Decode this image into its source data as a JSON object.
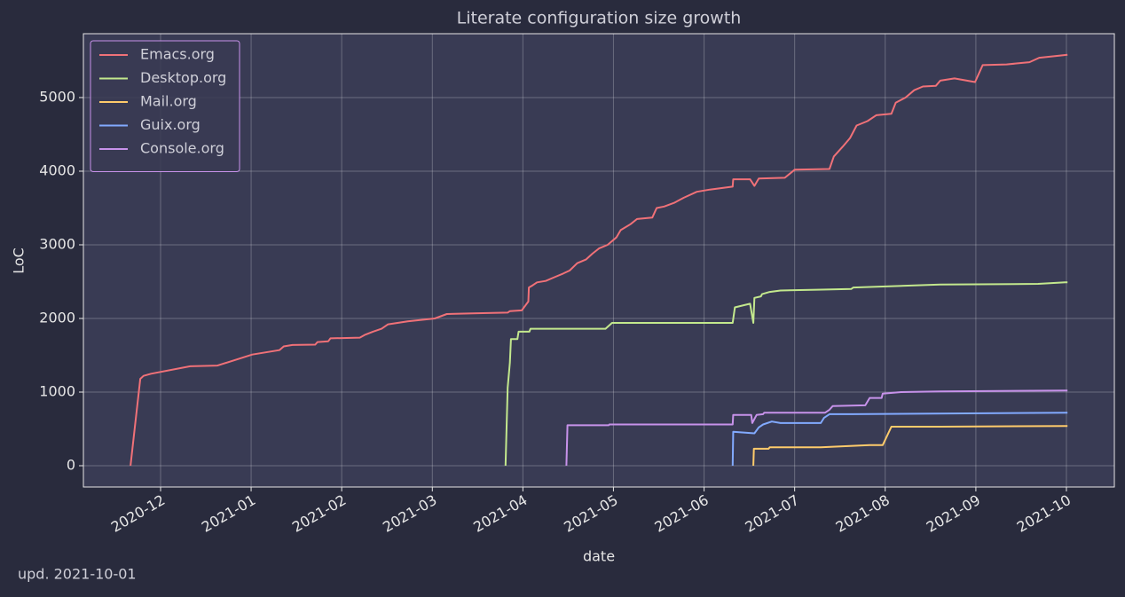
{
  "chart_data": {
    "type": "line",
    "title": "Literate configuration size growth",
    "x_label": "date",
    "y_label": "LoC",
    "footnote": "upd. 2021-10-01",
    "xlim": [
      2020.8457,
      2021.7941
    ],
    "ylim": [
      -289,
      5867
    ],
    "xticks": [
      {
        "value": 2020.9167,
        "label": "2020-12"
      },
      {
        "value": 2021.0,
        "label": "2021-01"
      },
      {
        "value": 2021.0833,
        "label": "2021-02"
      },
      {
        "value": 2021.1667,
        "label": "2021-03"
      },
      {
        "value": 2021.25,
        "label": "2021-04"
      },
      {
        "value": 2021.3333,
        "label": "2021-05"
      },
      {
        "value": 2021.4167,
        "label": "2021-06"
      },
      {
        "value": 2021.5,
        "label": "2021-07"
      },
      {
        "value": 2021.5833,
        "label": "2021-08"
      },
      {
        "value": 2021.6667,
        "label": "2021-09"
      },
      {
        "value": 2021.75,
        "label": "2021-10"
      }
    ],
    "yticks": [
      0,
      1000,
      2000,
      3000,
      4000,
      5000
    ],
    "grid": true,
    "legend": "upper left",
    "series": [
      {
        "name": "Emacs.org",
        "color": "#f07178",
        "x": [
          2020.889,
          2020.898,
          2020.901,
          2020.908,
          2020.944,
          2020.969,
          2021.001,
          2021.026,
          2021.03,
          2021.038,
          2021.059,
          2021.061,
          2021.071,
          2021.073,
          2021.1,
          2021.105,
          2021.112,
          2021.12,
          2021.126,
          2021.144,
          2021.169,
          2021.18,
          2021.204,
          2021.236,
          2021.238,
          2021.249,
          2021.255,
          2021.2555,
          2021.259,
          2021.263,
          2021.271,
          2021.279,
          2021.287,
          2021.293,
          2021.3,
          2021.308,
          2021.314,
          2021.32,
          2021.328,
          2021.336,
          2021.34,
          2021.349,
          2021.355,
          2021.369,
          2021.373,
          2021.38,
          2021.389,
          2021.398,
          2021.41,
          2021.422,
          2021.443,
          2021.4435,
          2021.459,
          2021.463,
          2021.467,
          2021.491,
          2021.5,
          2021.532,
          2021.536,
          2021.544,
          2021.551,
          2021.557,
          2021.567,
          2021.575,
          2021.589,
          2021.593,
          2021.602,
          2021.61,
          2021.618,
          2021.63,
          2021.634,
          2021.647,
          2021.666,
          2021.673,
          2021.695,
          2021.716,
          2021.725,
          2021.751
        ],
        "values": [
          0,
          1180,
          1220,
          1250,
          1350,
          1360,
          1510,
          1570,
          1620,
          1640,
          1645,
          1680,
          1690,
          1730,
          1740,
          1780,
          1820,
          1860,
          1920,
          1960,
          2000,
          2060,
          2070,
          2080,
          2100,
          2110,
          2230,
          2420,
          2450,
          2490,
          2510,
          2560,
          2610,
          2650,
          2750,
          2800,
          2880,
          2950,
          3000,
          3100,
          3200,
          3280,
          3350,
          3370,
          3500,
          3520,
          3570,
          3640,
          3720,
          3750,
          3790,
          3890,
          3890,
          3800,
          3900,
          3910,
          4020,
          4030,
          4200,
          4330,
          4450,
          4620,
          4680,
          4760,
          4780,
          4930,
          5000,
          5100,
          5150,
          5160,
          5230,
          5260,
          5210,
          5440,
          5450,
          5480,
          5540,
          5580
        ]
      },
      {
        "name": "Desktop.org",
        "color": "#c3e88d",
        "x": [
          2021.234,
          2021.236,
          2021.238,
          2021.239,
          2021.245,
          2021.246,
          2021.256,
          2021.257,
          2021.326,
          2021.332,
          2021.443,
          2021.445,
          2021.459,
          2021.462,
          2021.463,
          2021.469,
          2021.47,
          2021.477,
          2021.487,
          2021.52,
          2021.552,
          2021.554,
          2021.593,
          2021.634,
          2021.724,
          2021.749,
          2021.751
        ],
        "values": [
          0,
          1060,
          1400,
          1720,
          1720,
          1820,
          1820,
          1860,
          1860,
          1940,
          1940,
          2150,
          2200,
          1940,
          2280,
          2300,
          2330,
          2360,
          2380,
          2390,
          2400,
          2420,
          2440,
          2460,
          2470,
          2490,
          2490
        ]
      },
      {
        "name": "Mail.org",
        "color": "#ffcb6b",
        "x": [
          2021.462,
          2021.4625,
          2021.476,
          2021.477,
          2021.524,
          2021.569,
          2021.581,
          2021.589,
          2021.634,
          2021.751
        ],
        "values": [
          0,
          230,
          230,
          250,
          250,
          280,
          280,
          530,
          530,
          540
        ]
      },
      {
        "name": "Guix.org",
        "color": "#82aaff",
        "x": [
          2021.443,
          2021.4435,
          2021.463,
          2021.467,
          2021.471,
          2021.479,
          2021.487,
          2021.524,
          2021.527,
          2021.532,
          2021.553,
          2021.751
        ],
        "values": [
          0,
          460,
          440,
          520,
          560,
          600,
          580,
          580,
          650,
          700,
          700,
          720
        ]
      },
      {
        "name": "Console.org",
        "color": "#c792ea",
        "x": [
          2021.29,
          2021.291,
          2021.329,
          2021.3295,
          2021.443,
          2021.4435,
          2021.46,
          2021.461,
          2021.465,
          2021.471,
          2021.472,
          2021.528,
          2021.532,
          2021.535,
          2021.565,
          2021.569,
          2021.58,
          2021.581,
          2021.598,
          2021.634,
          2021.751
        ],
        "values": [
          0,
          550,
          550,
          560,
          560,
          690,
          690,
          580,
          690,
          700,
          720,
          720,
          760,
          810,
          820,
          920,
          920,
          980,
          1000,
          1010,
          1020
        ]
      }
    ]
  }
}
